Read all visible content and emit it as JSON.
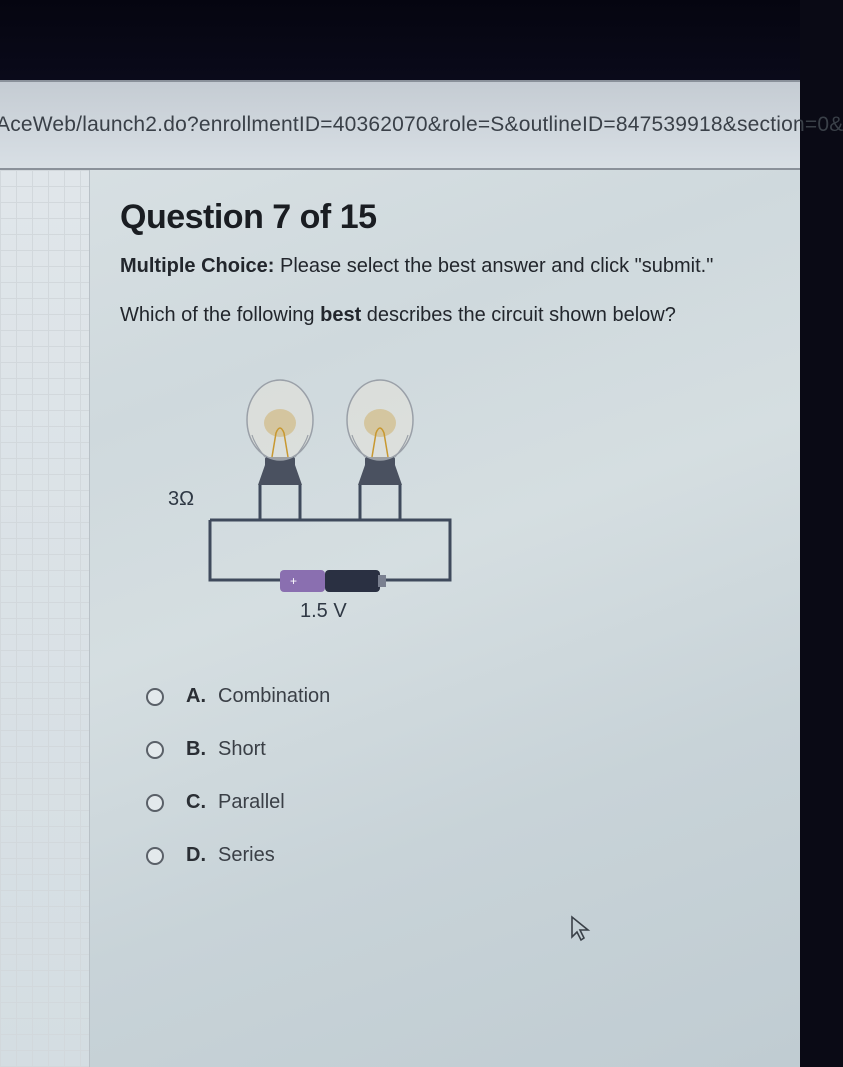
{
  "browser": {
    "url_fragment": "AceWeb/launch2.do?enrollmentID=40362070&role=S&outlineID=847539918&section=0&"
  },
  "question": {
    "number": 7,
    "total": 15,
    "title_prefix": "Question ",
    "title_mid": " of ",
    "type_label": "Multiple Choice:",
    "instruction": " Please select the best answer and click \"submit.\"",
    "prompt_before": "Which of the following ",
    "prompt_bold": "best",
    "prompt_after": " describes the circuit shown below?"
  },
  "circuit": {
    "resistance_label": "3Ω",
    "voltage_label": "1.5 V",
    "wire_color": "#3f4a5c",
    "wire_width": 3,
    "bulb_glass_fill": "#e4e2d8",
    "bulb_glass_stroke": "#9aa0a8",
    "bulb_base_fill": "#4a5160",
    "filament_color": "#c89830",
    "battery_left_color": "#8a6fb0",
    "battery_right_color": "#2a3042",
    "battery_tip_color": "#7a8090",
    "label_color": "#2f3844",
    "label_fontsize": 20
  },
  "options": [
    {
      "letter": "A.",
      "text": "Combination"
    },
    {
      "letter": "B.",
      "text": "Short"
    },
    {
      "letter": "C.",
      "text": "Parallel"
    },
    {
      "letter": "D.",
      "text": "Series"
    }
  ],
  "colors": {
    "page_bg": "#d5dee1",
    "text_primary": "#1a1d22"
  }
}
